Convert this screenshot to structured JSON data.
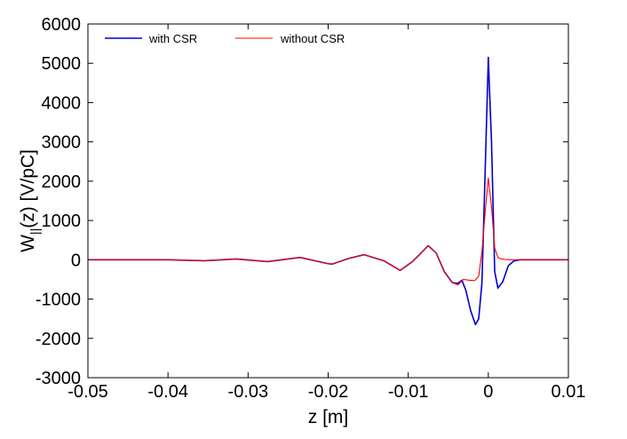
{
  "chart_data": {
    "type": "line",
    "xlabel": "z [m]",
    "ylabel": {
      "main": "W",
      "sub": "||",
      "rest": "(z) [V/pC]"
    },
    "xlim": [
      -0.05,
      0.01
    ],
    "ylim": [
      -3000,
      6000
    ],
    "xticks": [
      -0.05,
      -0.04,
      -0.03,
      -0.02,
      -0.01,
      0,
      0.01
    ],
    "xtick_labels": [
      "-0.05",
      "-0.04",
      "-0.03",
      "-0.02",
      "-0.01",
      "0",
      "0.01"
    ],
    "yticks": [
      -3000,
      -2000,
      -1000,
      0,
      1000,
      2000,
      3000,
      4000,
      5000,
      6000
    ],
    "ytick_labels": [
      "-3000",
      "-2000",
      "-1000",
      "0",
      "1000",
      "2000",
      "3000",
      "4000",
      "5000",
      "6000"
    ],
    "grid": false,
    "legend_position": "top-left",
    "series": [
      {
        "name": "with CSR",
        "color": "#0000cc",
        "x": [
          -0.05,
          -0.045,
          -0.04,
          -0.0355,
          -0.0315,
          -0.028,
          -0.0275,
          -0.0235,
          -0.02,
          -0.0195,
          -0.0175,
          -0.0155,
          -0.013,
          -0.011,
          -0.0095,
          -0.0085,
          -0.0075,
          -0.0065,
          -0.0055,
          -0.0045,
          -0.0038,
          -0.0033,
          -0.0028,
          -0.0022,
          -0.0016,
          -0.0012,
          -0.0008,
          -0.0004,
          0.0,
          0.0004,
          0.0008,
          0.0012,
          0.0018,
          0.0025,
          0.0032,
          0.004,
          0.006,
          0.01
        ],
        "y": [
          0,
          0,
          0,
          -25,
          20,
          -40,
          -45,
          60,
          -100,
          -110,
          30,
          130,
          -30,
          -270,
          -50,
          150,
          360,
          170,
          -300,
          -580,
          -600,
          -520,
          -780,
          -1300,
          -1650,
          -1500,
          -600,
          2200,
          5150,
          3000,
          -300,
          -720,
          -560,
          -150,
          -30,
          0,
          0,
          0
        ]
      },
      {
        "name": "without CSR",
        "color": "#ff0000",
        "x": [
          -0.05,
          -0.045,
          -0.04,
          -0.0355,
          -0.0315,
          -0.028,
          -0.0275,
          -0.0235,
          -0.02,
          -0.0195,
          -0.0175,
          -0.0155,
          -0.013,
          -0.011,
          -0.0095,
          -0.0085,
          -0.0075,
          -0.0065,
          -0.0055,
          -0.0045,
          -0.0038,
          -0.0031,
          -0.0024,
          -0.0017,
          -0.0012,
          -0.0008,
          -0.0004,
          0.0,
          0.0004,
          0.0008,
          0.0012,
          0.0016,
          0.0022,
          0.003,
          0.004,
          0.006,
          0.01
        ],
        "y": [
          0,
          0,
          0,
          -25,
          20,
          -40,
          -45,
          60,
          -100,
          -110,
          30,
          130,
          -30,
          -270,
          -50,
          150,
          360,
          170,
          -300,
          -580,
          -640,
          -500,
          -520,
          -530,
          -420,
          200,
          1200,
          2080,
          1350,
          300,
          60,
          20,
          5,
          0,
          0,
          0,
          0
        ]
      }
    ]
  }
}
